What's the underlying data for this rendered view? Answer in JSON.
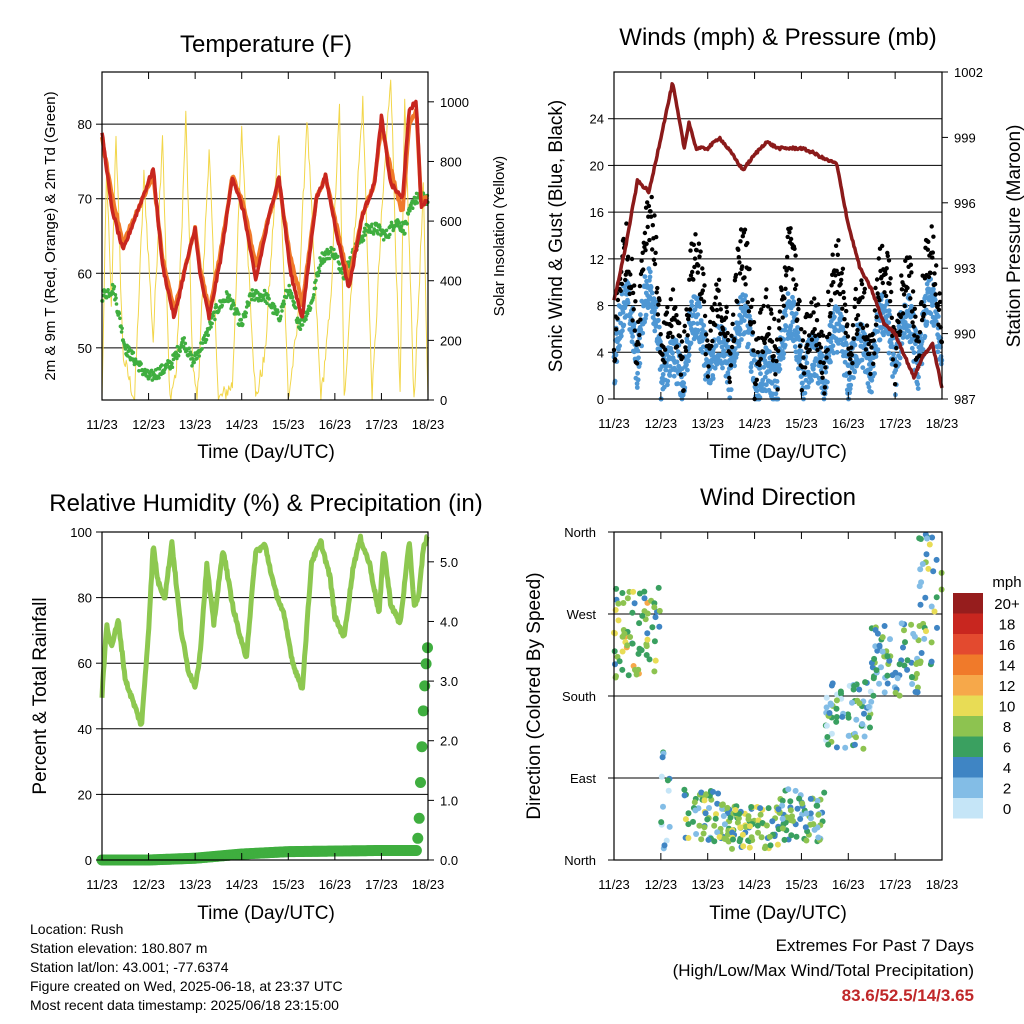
{
  "chart_data": [
    {
      "type": "line",
      "title": "Temperature (F)",
      "xlabel": "Time (Day/UTC)",
      "ylabel": "2m & 9m T (Red, Orange) & 2m Td (Green)",
      "ylabel_right": "Solar Insolation (Yellow)",
      "x_tick_labels": [
        "11/23",
        "12/23",
        "13/23",
        "14/23",
        "15/23",
        "16/23",
        "17/23",
        "18/23"
      ],
      "ylim": [
        43,
        87
      ],
      "yticks": [
        50,
        60,
        70,
        80
      ],
      "y2lim": [
        0,
        1100
      ],
      "y2ticks": [
        0,
        200,
        400,
        600,
        800,
        1000
      ],
      "grid": true,
      "series": [
        {
          "color": "#c8261f",
          "x": [
            0,
            0.2,
            0.45,
            0.8,
            1.1,
            1.3,
            1.55,
            1.8,
            2.0,
            2.1,
            2.3,
            2.55,
            2.8,
            3.05,
            3.3,
            3.6,
            3.8,
            4.05,
            4.3,
            4.6,
            4.8,
            5.05,
            5.3,
            5.6,
            5.85,
            6.0,
            6.2,
            6.45,
            6.6,
            6.75,
            6.85,
            7.0
          ],
          "values": [
            79,
            69,
            63,
            69,
            74,
            61,
            54,
            61,
            66,
            60,
            54,
            62,
            73,
            68,
            59,
            68,
            73,
            60,
            54,
            70,
            73,
            65,
            58,
            68,
            72,
            81,
            72,
            70,
            82,
            83,
            69,
            70
          ]
        },
        {
          "color": "#f07a2a",
          "x": [
            0,
            0.2,
            0.45,
            0.8,
            1.1,
            1.3,
            1.55,
            1.8,
            2.0,
            2.1,
            2.3,
            2.55,
            2.8,
            3.05,
            3.3,
            3.6,
            3.8,
            4.05,
            4.3,
            4.6,
            4.8,
            5.05,
            5.3,
            5.6,
            5.85,
            6.0,
            6.2,
            6.45,
            6.6,
            6.75,
            6.85,
            7.0
          ],
          "values": [
            78,
            71,
            64,
            69,
            73,
            62,
            55,
            61,
            66,
            61,
            55,
            63,
            73,
            69,
            61,
            68,
            72,
            62,
            56,
            70,
            73,
            66,
            59,
            68,
            72,
            80,
            74,
            68,
            80,
            82,
            70,
            70
          ]
        },
        {
          "color": "#3fae3f",
          "x": [
            0,
            0.25,
            0.5,
            0.75,
            1.0,
            1.3,
            1.5,
            1.75,
            1.95,
            2.2,
            2.45,
            2.7,
            3.0,
            3.2,
            3.5,
            3.8,
            4.0,
            4.25,
            4.5,
            4.7,
            4.95,
            5.2,
            5.5,
            5.7,
            5.9,
            6.1,
            6.3,
            6.5,
            6.7,
            6.85,
            7.0
          ],
          "values": [
            57,
            58,
            50,
            48,
            46,
            47,
            48,
            51,
            48,
            51,
            55,
            57,
            53,
            57,
            57,
            54,
            58,
            53,
            56,
            62,
            63,
            60,
            64,
            66,
            66,
            65,
            67,
            66,
            70,
            70,
            70
          ]
        },
        {
          "color": "#f2d64a",
          "x": [
            0,
            0.1,
            0.2,
            0.3,
            0.45,
            0.7,
            0.9,
            1.1,
            1.3,
            1.45,
            1.6,
            1.8,
            1.95,
            2.05,
            2.3,
            2.5,
            2.8,
            3.0,
            3.3,
            3.5,
            3.8,
            4.0,
            4.2,
            4.4,
            4.7,
            4.9,
            5.1,
            5.2,
            5.4,
            5.6,
            5.8,
            6.0,
            6.2,
            6.4,
            6.5,
            6.7,
            6.9,
            7.0
          ],
          "values": [
            0,
            780,
            300,
            900,
            150,
            0,
            750,
            200,
            900,
            0,
            100,
            950,
            100,
            0,
            850,
            0,
            50,
            900,
            0,
            150,
            900,
            0,
            250,
            950,
            0,
            300,
            980,
            0,
            500,
            1000,
            0,
            600,
            1100,
            0,
            1000,
            0,
            700,
            0
          ]
        }
      ]
    },
    {
      "type": "scatter",
      "title": "Winds (mph) & Pressure (mb)",
      "xlabel": "Time (Day/UTC)",
      "ylabel": "Sonic Wind & Gust (Blue, Black)",
      "ylabel_right": "Station Pressure (Maroon)",
      "x_tick_labels": [
        "11/23",
        "12/23",
        "13/23",
        "14/23",
        "15/23",
        "16/23",
        "17/23",
        "18/23"
      ],
      "ylim": [
        0,
        28
      ],
      "yticks": [
        0,
        4,
        8,
        12,
        16,
        20,
        24
      ],
      "y2lim": [
        987,
        1002
      ],
      "y2ticks": [
        987,
        990,
        993,
        996,
        999,
        1002
      ],
      "grid": true,
      "series": [
        {
          "color": "#8b1a1a",
          "x": [
            0,
            0.25,
            0.5,
            0.75,
            1.0,
            1.25,
            1.5,
            1.6,
            1.75,
            2.0,
            2.25,
            2.5,
            2.75,
            3.0,
            3.25,
            3.5,
            3.75,
            4.0,
            4.25,
            4.5,
            4.75,
            5.0,
            5.25,
            5.5,
            5.75,
            6.0,
            6.2,
            6.4,
            6.6,
            6.8,
            7.0
          ],
          "values": [
            991.5,
            994,
            997,
            996.5,
            999,
            1001.5,
            998.5,
            999.7,
            998.5,
            998.5,
            999,
            998.3,
            997.5,
            998.2,
            998.8,
            998.5,
            998.5,
            998.5,
            998.3,
            998,
            997.8,
            995,
            993,
            992,
            990.5,
            990,
            989,
            988,
            989,
            989.5,
            987.5
          ]
        },
        {
          "color": "#4e97d4",
          "mean_by_day": [
            7,
            8,
            3,
            6,
            4,
            6,
            2,
            6,
            3,
            5,
            4,
            6,
            6,
            7
          ]
        },
        {
          "color": "#000000",
          "mean_by_day": [
            11,
            14,
            6,
            11,
            7,
            11,
            6,
            11,
            6,
            10,
            7,
            10,
            9,
            11
          ]
        }
      ]
    },
    {
      "type": "line",
      "title": "Relative Humidity (%) & Precipitation (in)",
      "xlabel": "Time (Day/UTC)",
      "ylabel": "Percent & Total Rainfall",
      "x_tick_labels": [
        "11/23",
        "12/23",
        "13/23",
        "14/23",
        "15/23",
        "16/23",
        "17/23",
        "18/23"
      ],
      "ylim": [
        0,
        100
      ],
      "yticks": [
        0,
        20,
        40,
        60,
        80,
        100
      ],
      "y2lim": [
        0,
        5.5
      ],
      "y2ticks": [
        "0.0",
        "1.0",
        "2.0",
        "3.0",
        "4.0",
        "5.0"
      ],
      "grid": true,
      "series": [
        {
          "color": "#8dc850",
          "x": [
            0,
            0.1,
            0.2,
            0.35,
            0.5,
            0.7,
            0.85,
            1.0,
            1.1,
            1.2,
            1.35,
            1.5,
            1.7,
            1.85,
            2.0,
            2.1,
            2.25,
            2.4,
            2.6,
            2.8,
            3.0,
            3.1,
            3.3,
            3.5,
            3.7,
            3.9,
            4.1,
            4.3,
            4.5,
            4.7,
            4.9,
            5.0,
            5.2,
            5.4,
            5.55,
            5.75,
            5.95,
            6.05,
            6.2,
            6.4,
            6.6,
            6.7,
            6.8,
            6.9,
            7.0
          ],
          "values": [
            50,
            72,
            65,
            73,
            55,
            47,
            41,
            70,
            96,
            85,
            80,
            97,
            70,
            58,
            53,
            62,
            90,
            72,
            95,
            78,
            66,
            62,
            94,
            96,
            83,
            75,
            60,
            52,
            91,
            97,
            86,
            74,
            68,
            90,
            98,
            90,
            75,
            95,
            78,
            72,
            97,
            78,
            80,
            95,
            99
          ]
        },
        {
          "color": "#3fae3f",
          "x": [
            0,
            1,
            2,
            3,
            4,
            5,
            6,
            6.75,
            6.8,
            6.85,
            6.9,
            6.95,
            7.0
          ],
          "values": [
            0.0,
            0.0,
            0.03,
            0.1,
            0.14,
            0.15,
            0.16,
            0.16,
            0.5,
            1.5,
            2.5,
            3.2,
            3.65
          ]
        }
      ]
    },
    {
      "type": "scatter",
      "title": "Wind Direction",
      "xlabel": "Time (Day/UTC)",
      "ylabel": "Direction (Colored By Speed)",
      "x_tick_labels": [
        "11/23",
        "12/23",
        "13/23",
        "14/23",
        "15/23",
        "16/23",
        "17/23",
        "18/23"
      ],
      "y_tick_labels": [
        "North",
        "East",
        "South",
        "West",
        "North"
      ],
      "ylim": [
        0,
        360
      ],
      "grid": true,
      "legend": {
        "title": "mph",
        "placement": "right",
        "labels": [
          "20+",
          "18",
          "16",
          "14",
          "12",
          "10",
          "8",
          "6",
          "4",
          "2",
          "0"
        ],
        "colors": [
          "#961d1d",
          "#c8261f",
          "#e34a2f",
          "#f07a2a",
          "#f6a84a",
          "#e8dc55",
          "#8dc350",
          "#3aa060",
          "#3f85c4",
          "#83bde6",
          "#c5e5f7"
        ]
      },
      "clusters": [
        {
          "x": [
            0,
            1
          ],
          "deg": [
            200,
            300
          ],
          "speed": 8
        },
        {
          "x": [
            1,
            1.2
          ],
          "deg": [
            0,
            120
          ],
          "speed": 2
        },
        {
          "x": [
            1.5,
            2.5
          ],
          "deg": [
            20,
            80
          ],
          "speed": 6
        },
        {
          "x": [
            2.5,
            3.5
          ],
          "deg": [
            10,
            60
          ],
          "speed": 7
        },
        {
          "x": [
            3.5,
            4.5
          ],
          "deg": [
            20,
            80
          ],
          "speed": 5
        },
        {
          "x": [
            4.5,
            5.5
          ],
          "deg": [
            120,
            200
          ],
          "speed": 4
        },
        {
          "x": [
            5.5,
            6.5
          ],
          "deg": [
            180,
            260
          ],
          "speed": 5
        },
        {
          "x": [
            6.5,
            7.0
          ],
          "deg": [
            200,
            360
          ],
          "speed": 6
        }
      ]
    }
  ],
  "footer": {
    "location": "Location: Rush",
    "elevation": "Station elevation: 180.807 m",
    "latlon": "Station lat/lon: 43.001; -77.6374",
    "created": "Figure created on Wed, 2025-06-18, at 23:37 UTC",
    "recent": "Most recent data timestamp: 2025/06/18 23:15:00",
    "extremes_title": "Extremes For Past 7 Days",
    "extremes_subtitle": "(High/Low/Max Wind/Total Precipitation)",
    "extremes_values": "83.6/52.5/14/3.65"
  }
}
